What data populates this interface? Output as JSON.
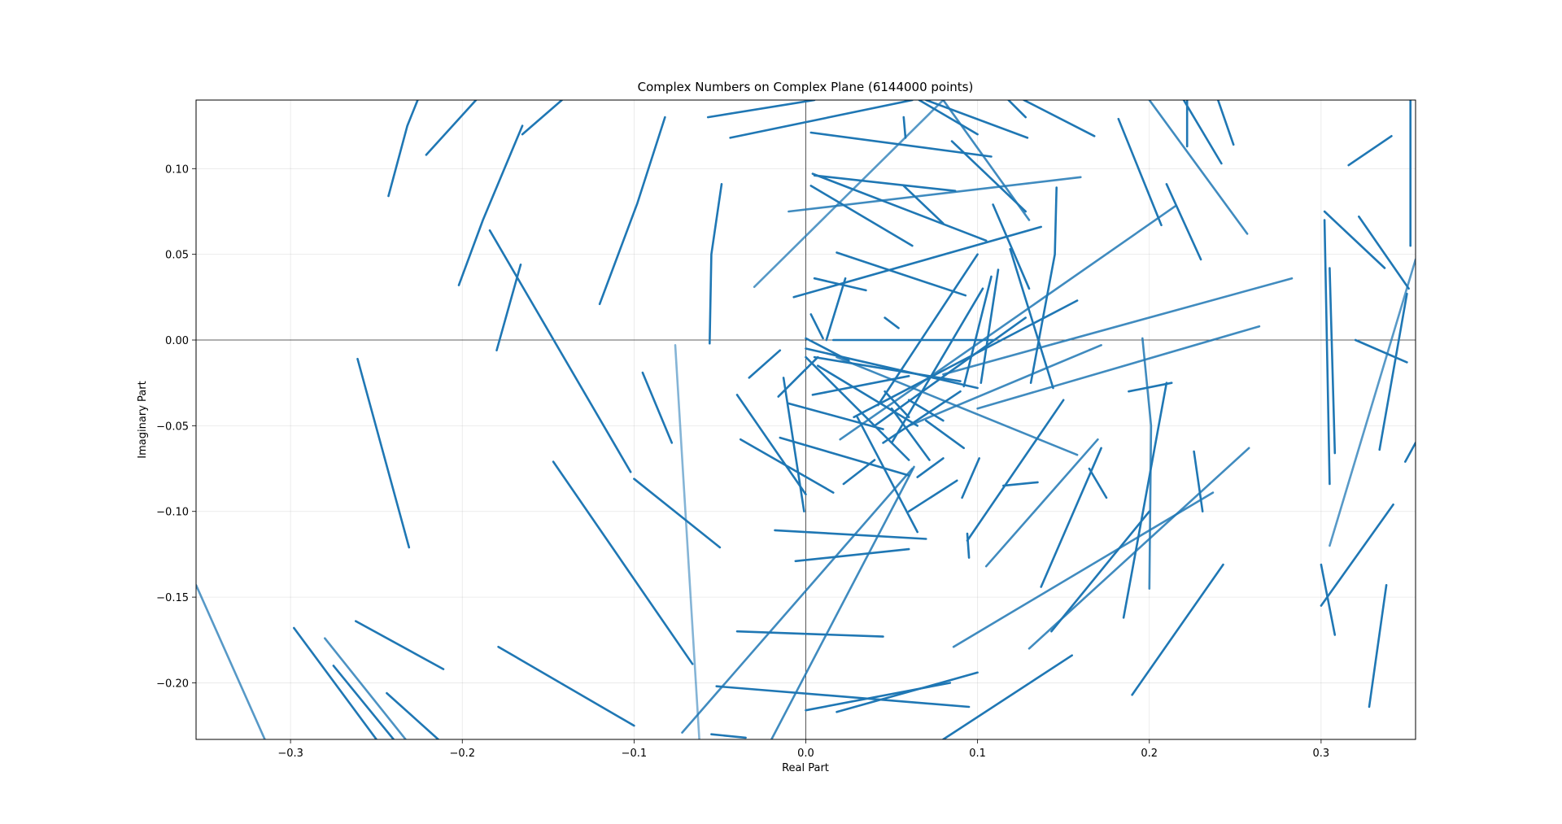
{
  "chart_data": {
    "type": "line",
    "title": "Complex Numbers on Complex Plane (6144000 points)",
    "xlabel": "Real Part",
    "ylabel": "Imaginary Part",
    "xlim": [
      -0.355,
      0.355
    ],
    "ylim": [
      -0.233,
      0.14
    ],
    "grid": true,
    "x_ticks": [
      -0.3,
      -0.2,
      -0.1,
      0.0,
      0.1,
      0.2,
      0.3
    ],
    "x_tick_labels": [
      "−0.3",
      "−0.2",
      "−0.1",
      "0.0",
      "0.1",
      "0.2",
      "0.3"
    ],
    "y_ticks": [
      -0.2,
      -0.15,
      -0.1,
      -0.05,
      0.0,
      0.05,
      0.1
    ],
    "y_tick_labels": [
      "−0.20",
      "−0.15",
      "−0.10",
      "−0.05",
      "0.00",
      "0.05",
      "0.10"
    ],
    "color": "#1f77b4",
    "segments": [
      {
        "x": [
          -0.243,
          -0.232,
          -0.226
        ],
        "y": [
          0.084,
          0.125,
          0.14
        ],
        "a": 1.0
      },
      {
        "x": [
          -0.221,
          -0.192
        ],
        "y": [
          0.108,
          0.14
        ],
        "a": 1.0
      },
      {
        "x": [
          -0.165,
          -0.142
        ],
        "y": [
          0.12,
          0.14
        ],
        "a": 1.0
      },
      {
        "x": [
          -0.202,
          -0.188,
          -0.165
        ],
        "y": [
          0.032,
          0.07,
          0.125
        ],
        "a": 1.0
      },
      {
        "x": [
          -0.18,
          -0.166
        ],
        "y": [
          -0.006,
          0.044
        ],
        "a": 1.0
      },
      {
        "x": [
          -0.184,
          -0.102
        ],
        "y": [
          0.064,
          -0.077
        ],
        "a": 1.0
      },
      {
        "x": [
          -0.12,
          -0.098,
          -0.082
        ],
        "y": [
          0.021,
          0.08,
          0.13
        ],
        "a": 1.0
      },
      {
        "x": [
          -0.056,
          -0.055,
          -0.049
        ],
        "y": [
          -0.002,
          0.05,
          0.091
        ],
        "a": 1.0
      },
      {
        "x": [
          -0.057,
          0.005
        ],
        "y": [
          0.13,
          0.14
        ],
        "a": 1.0
      },
      {
        "x": [
          -0.044,
          0.062
        ],
        "y": [
          0.118,
          0.14
        ],
        "a": 1.0
      },
      {
        "x": [
          -0.261,
          -0.231
        ],
        "y": [
          -0.011,
          -0.121
        ],
        "a": 1.0
      },
      {
        "x": [
          -0.095,
          -0.078
        ],
        "y": [
          -0.019,
          -0.06
        ],
        "a": 1.0
      },
      {
        "x": [
          -0.1,
          -0.05
        ],
        "y": [
          -0.081,
          -0.121
        ],
        "a": 1.0
      },
      {
        "x": [
          -0.147,
          -0.066
        ],
        "y": [
          -0.071,
          -0.189
        ],
        "a": 1.0
      },
      {
        "x": [
          -0.076,
          -0.062
        ],
        "y": [
          -0.003,
          -0.233
        ],
        "a": 0.55
      },
      {
        "x": [
          -0.355,
          -0.315
        ],
        "y": [
          -0.143,
          -0.233
        ],
        "a": 0.75
      },
      {
        "x": [
          -0.298,
          -0.25
        ],
        "y": [
          -0.168,
          -0.233
        ],
        "a": 1.0
      },
      {
        "x": [
          -0.262,
          -0.211
        ],
        "y": [
          -0.164,
          -0.192
        ],
        "a": 1.0
      },
      {
        "x": [
          -0.28,
          -0.233
        ],
        "y": [
          -0.174,
          -0.233
        ],
        "a": 0.8
      },
      {
        "x": [
          -0.275,
          -0.24
        ],
        "y": [
          -0.19,
          -0.233
        ],
        "a": 1.0
      },
      {
        "x": [
          -0.244,
          -0.214
        ],
        "y": [
          -0.206,
          -0.233
        ],
        "a": 1.0
      },
      {
        "x": [
          -0.179,
          -0.1
        ],
        "y": [
          -0.179,
          -0.225
        ],
        "a": 1.0
      },
      {
        "x": [
          0.003,
          0.108
        ],
        "y": [
          0.121,
          0.107
        ],
        "a": 1.0
      },
      {
        "x": [
          0.003,
          0.062
        ],
        "y": [
          0.09,
          0.055
        ],
        "a": 1.0
      },
      {
        "x": [
          0.004,
          0.105
        ],
        "y": [
          0.097,
          0.058
        ],
        "a": 1.0
      },
      {
        "x": [
          0.005,
          0.087
        ],
        "y": [
          0.096,
          0.087
        ],
        "a": 1.0
      },
      {
        "x": [
          -0.01,
          0.16
        ],
        "y": [
          0.075,
          0.095
        ],
        "a": 0.85
      },
      {
        "x": [
          -0.03,
          0.08
        ],
        "y": [
          0.031,
          0.14
        ],
        "a": 0.75
      },
      {
        "x": [
          0.057,
          0.08
        ],
        "y": [
          0.09,
          0.068
        ],
        "a": 1.0
      },
      {
        "x": [
          0.085,
          0.128
        ],
        "y": [
          0.116,
          0.075
        ],
        "a": 1.0
      },
      {
        "x": [
          0.07,
          0.129
        ],
        "y": [
          0.14,
          0.118
        ],
        "a": 1.0
      },
      {
        "x": [
          0.066,
          0.1
        ],
        "y": [
          0.14,
          0.12
        ],
        "a": 1.0
      },
      {
        "x": [
          0.057,
          0.058
        ],
        "y": [
          0.13,
          0.118
        ],
        "a": 1.0
      },
      {
        "x": [
          0.127,
          0.168
        ],
        "y": [
          0.14,
          0.119
        ],
        "a": 1.0
      },
      {
        "x": [
          0.118,
          0.128
        ],
        "y": [
          0.14,
          0.13
        ],
        "a": 1.0
      },
      {
        "x": [
          0.08,
          0.13
        ],
        "y": [
          0.14,
          0.07
        ],
        "a": 0.85
      },
      {
        "x": [
          -0.007,
          0.137
        ],
        "y": [
          0.025,
          0.066
        ],
        "a": 1.0
      },
      {
        "x": [
          0.018,
          0.093
        ],
        "y": [
          0.051,
          0.026
        ],
        "a": 1.0
      },
      {
        "x": [
          0.005,
          0.035
        ],
        "y": [
          0.036,
          0.029
        ],
        "a": 1.0
      },
      {
        "x": [
          0.003,
          0.01
        ],
        "y": [
          0.015,
          0.001
        ],
        "a": 1.0
      },
      {
        "x": [
          0.012,
          0.023
        ],
        "y": [
          0.0,
          0.036
        ],
        "a": 1.0
      },
      {
        "x": [
          0.016,
          0.11
        ],
        "y": [
          0.0,
          0.0
        ],
        "a": 1.0
      },
      {
        "x": [
          0.109,
          0.13
        ],
        "y": [
          0.079,
          0.03
        ],
        "a": 1.0
      },
      {
        "x": [
          0.131,
          0.145,
          0.146
        ],
        "y": [
          -0.025,
          0.05,
          0.089
        ],
        "a": 1.0
      },
      {
        "x": [
          0.102,
          0.112
        ],
        "y": [
          -0.025,
          0.041
        ],
        "a": 1.0
      },
      {
        "x": [
          0.092,
          0.108
        ],
        "y": [
          -0.027,
          0.037
        ],
        "a": 1.0
      },
      {
        "x": [
          0.119,
          0.144
        ],
        "y": [
          0.053,
          -0.028
        ],
        "a": 1.0
      },
      {
        "x": [
          0.042,
          0.1
        ],
        "y": [
          -0.038,
          0.05
        ],
        "a": 1.0
      },
      {
        "x": [
          0.05,
          0.103
        ],
        "y": [
          -0.06,
          0.03
        ],
        "a": 1.0
      },
      {
        "x": [
          0.04,
          0.128
        ],
        "y": [
          -0.05,
          0.013
        ],
        "a": 1.0
      },
      {
        "x": [
          0.028,
          0.158
        ],
        "y": [
          -0.045,
          0.023
        ],
        "a": 1.0
      },
      {
        "x": [
          0.045,
          0.09
        ],
        "y": [
          -0.06,
          -0.03
        ],
        "a": 1.0
      },
      {
        "x": [
          0.0,
          0.1
        ],
        "y": [
          -0.005,
          -0.028
        ],
        "a": 1.0
      },
      {
        "x": [
          0.005,
          0.09
        ],
        "y": [
          -0.01,
          -0.024
        ],
        "a": 1.0
      },
      {
        "x": [
          0.0,
          0.06
        ],
        "y": [
          -0.01,
          -0.07
        ],
        "a": 1.0
      },
      {
        "x": [
          -0.016,
          0.007
        ],
        "y": [
          -0.033,
          -0.01
        ],
        "a": 1.0
      },
      {
        "x": [
          -0.033,
          -0.015
        ],
        "y": [
          -0.022,
          -0.006
        ],
        "a": 1.0
      },
      {
        "x": [
          0.0,
          0.025
        ],
        "y": [
          0.001,
          -0.012
        ],
        "a": 1.0
      },
      {
        "x": [
          -0.01,
          0.045
        ],
        "y": [
          -0.037,
          -0.052
        ],
        "a": 1.0
      },
      {
        "x": [
          0.004,
          0.06
        ],
        "y": [
          -0.032,
          -0.021
        ],
        "a": 1.0
      },
      {
        "x": [
          0.007,
          0.065
        ],
        "y": [
          -0.015,
          -0.05
        ],
        "a": 1.0
      },
      {
        "x": [
          0.018,
          0.158
        ],
        "y": [
          -0.01,
          -0.067
        ],
        "a": 0.85
      },
      {
        "x": [
          0.02,
          0.215
        ],
        "y": [
          -0.058,
          0.078
        ],
        "a": 0.85
      },
      {
        "x": [
          0.08,
          0.283
        ],
        "y": [
          -0.02,
          0.036
        ],
        "a": 0.85
      },
      {
        "x": [
          0.1,
          0.264
        ],
        "y": [
          -0.04,
          0.008
        ],
        "a": 0.85
      },
      {
        "x": [
          0.06,
          0.172
        ],
        "y": [
          -0.05,
          -0.003
        ],
        "a": 0.85
      },
      {
        "x": [
          -0.013,
          -0.001
        ],
        "y": [
          -0.022,
          -0.1
        ],
        "a": 1.0
      },
      {
        "x": [
          -0.04,
          0.0
        ],
        "y": [
          -0.032,
          -0.09
        ],
        "a": 1.0
      },
      {
        "x": [
          -0.038,
          0.016
        ],
        "y": [
          -0.058,
          -0.089
        ],
        "a": 1.0
      },
      {
        "x": [
          -0.015,
          0.06
        ],
        "y": [
          -0.057,
          -0.079
        ],
        "a": 1.0
      },
      {
        "x": [
          0.022,
          0.04
        ],
        "y": [
          -0.084,
          -0.07
        ],
        "a": 1.0
      },
      {
        "x": [
          0.03,
          0.065
        ],
        "y": [
          -0.045,
          -0.112
        ],
        "a": 1.0
      },
      {
        "x": [
          0.06,
          0.088
        ],
        "y": [
          -0.1,
          -0.082
        ],
        "a": 1.0
      },
      {
        "x": [
          0.05,
          0.072
        ],
        "y": [
          -0.04,
          -0.07
        ],
        "a": 1.0
      },
      {
        "x": [
          0.065,
          0.08
        ],
        "y": [
          -0.08,
          -0.069
        ],
        "a": 1.0
      },
      {
        "x": [
          0.07,
          0.092
        ],
        "y": [
          -0.047,
          -0.063
        ],
        "a": 1.0
      },
      {
        "x": [
          0.06,
          0.08
        ],
        "y": [
          -0.035,
          -0.047
        ],
        "a": 1.0
      },
      {
        "x": [
          0.046,
          0.054
        ],
        "y": [
          0.013,
          0.007
        ],
        "a": 1.0
      },
      {
        "x": [
          0.046,
          0.06
        ],
        "y": [
          -0.03,
          -0.045
        ],
        "a": 1.0
      },
      {
        "x": [
          -0.018,
          0.07
        ],
        "y": [
          -0.111,
          -0.116
        ],
        "a": 1.0
      },
      {
        "x": [
          -0.006,
          0.06
        ],
        "y": [
          -0.129,
          -0.122
        ],
        "a": 1.0
      },
      {
        "x": [
          0.091,
          0.101
        ],
        "y": [
          -0.092,
          -0.069
        ],
        "a": 1.0
      },
      {
        "x": [
          0.094,
          0.15
        ],
        "y": [
          -0.117,
          -0.035
        ],
        "a": 1.0
      },
      {
        "x": [
          0.094,
          0.095
        ],
        "y": [
          -0.113,
          -0.127
        ],
        "a": 1.0
      },
      {
        "x": [
          0.105,
          0.17
        ],
        "y": [
          -0.132,
          -0.058
        ],
        "a": 0.85
      },
      {
        "x": [
          0.115,
          0.135
        ],
        "y": [
          -0.085,
          -0.083
        ],
        "a": 1.0
      },
      {
        "x": [
          0.137,
          0.172
        ],
        "y": [
          -0.144,
          -0.063
        ],
        "a": 1.0
      },
      {
        "x": [
          0.165,
          0.175
        ],
        "y": [
          -0.075,
          -0.092
        ],
        "a": 1.0
      },
      {
        "x": [
          0.188,
          0.213
        ],
        "y": [
          -0.03,
          -0.025
        ],
        "a": 1.0
      },
      {
        "x": [
          0.196,
          0.201,
          0.2
        ],
        "y": [
          0.001,
          -0.05,
          -0.145
        ],
        "a": 0.85
      },
      {
        "x": [
          0.185,
          0.21
        ],
        "y": [
          -0.162,
          -0.025
        ],
        "a": 1.0
      },
      {
        "x": [
          0.143,
          0.2
        ],
        "y": [
          -0.17,
          -0.1
        ],
        "a": 1.0
      },
      {
        "x": [
          0.13,
          0.258
        ],
        "y": [
          -0.18,
          -0.063
        ],
        "a": 0.85
      },
      {
        "x": [
          0.086,
          0.237
        ],
        "y": [
          -0.179,
          -0.089
        ],
        "a": 0.85
      },
      {
        "x": [
          0.226,
          0.231
        ],
        "y": [
          -0.065,
          -0.1
        ],
        "a": 1.0
      },
      {
        "x": [
          0.19,
          0.243
        ],
        "y": [
          -0.207,
          -0.131
        ],
        "a": 1.0
      },
      {
        "x": [
          -0.072,
          0.062
        ],
        "y": [
          -0.229,
          -0.075
        ],
        "a": 0.85
      },
      {
        "x": [
          -0.02,
          0.063
        ],
        "y": [
          -0.233,
          -0.074
        ],
        "a": 0.85
      },
      {
        "x": [
          -0.04,
          0.045
        ],
        "y": [
          -0.17,
          -0.173
        ],
        "a": 1.0
      },
      {
        "x": [
          -0.052,
          0.095
        ],
        "y": [
          -0.202,
          -0.214
        ],
        "a": 1.0
      },
      {
        "x": [
          -0.055,
          -0.035
        ],
        "y": [
          -0.23,
          -0.232
        ],
        "a": 1.0
      },
      {
        "x": [
          0.0,
          0.084
        ],
        "y": [
          -0.216,
          -0.2
        ],
        "a": 1.0
      },
      {
        "x": [
          0.018,
          0.1
        ],
        "y": [
          -0.217,
          -0.194
        ],
        "a": 1.0
      },
      {
        "x": [
          0.08,
          0.155
        ],
        "y": [
          -0.233,
          -0.184
        ],
        "a": 1.0
      },
      {
        "x": [
          0.182,
          0.207
        ],
        "y": [
          0.129,
          0.067
        ],
        "a": 1.0
      },
      {
        "x": [
          0.21,
          0.23
        ],
        "y": [
          0.091,
          0.047
        ],
        "a": 1.0
      },
      {
        "x": [
          0.222,
          0.222
        ],
        "y": [
          0.14,
          0.113
        ],
        "a": 1.0
      },
      {
        "x": [
          0.22,
          0.242
        ],
        "y": [
          0.14,
          0.103
        ],
        "a": 1.0
      },
      {
        "x": [
          0.2,
          0.257
        ],
        "y": [
          0.14,
          0.062
        ],
        "a": 0.85
      },
      {
        "x": [
          0.24,
          0.249
        ],
        "y": [
          0.14,
          0.114
        ],
        "a": 1.0
      },
      {
        "x": [
          0.302,
          0.337
        ],
        "y": [
          0.075,
          0.042
        ],
        "a": 1.0
      },
      {
        "x": [
          0.302,
          0.305
        ],
        "y": [
          0.07,
          -0.084
        ],
        "a": 1.0
      },
      {
        "x": [
          0.305,
          0.308
        ],
        "y": [
          0.042,
          -0.066
        ],
        "a": 1.0
      },
      {
        "x": [
          0.322,
          0.351
        ],
        "y": [
          0.072,
          0.03
        ],
        "a": 1.0
      },
      {
        "x": [
          0.316,
          0.341
        ],
        "y": [
          0.102,
          0.119
        ],
        "a": 1.0
      },
      {
        "x": [
          0.352,
          0.352
        ],
        "y": [
          0.14,
          0.055
        ],
        "a": 1.0
      },
      {
        "x": [
          0.32,
          0.35
        ],
        "y": [
          0.0,
          -0.013
        ],
        "a": 1.0
      },
      {
        "x": [
          0.334,
          0.35
        ],
        "y": [
          -0.064,
          0.027
        ],
        "a": 1.0
      },
      {
        "x": [
          0.305,
          0.355
        ],
        "y": [
          -0.12,
          0.047
        ],
        "a": 0.75
      },
      {
        "x": [
          0.349,
          0.355
        ],
        "y": [
          -0.071,
          -0.06
        ],
        "a": 1.0
      },
      {
        "x": [
          0.3,
          0.342
        ],
        "y": [
          -0.155,
          -0.096
        ],
        "a": 1.0
      },
      {
        "x": [
          0.3,
          0.308
        ],
        "y": [
          -0.131,
          -0.172
        ],
        "a": 1.0
      },
      {
        "x": [
          0.328,
          0.338
        ],
        "y": [
          -0.214,
          -0.143
        ],
        "a": 1.0
      }
    ]
  }
}
